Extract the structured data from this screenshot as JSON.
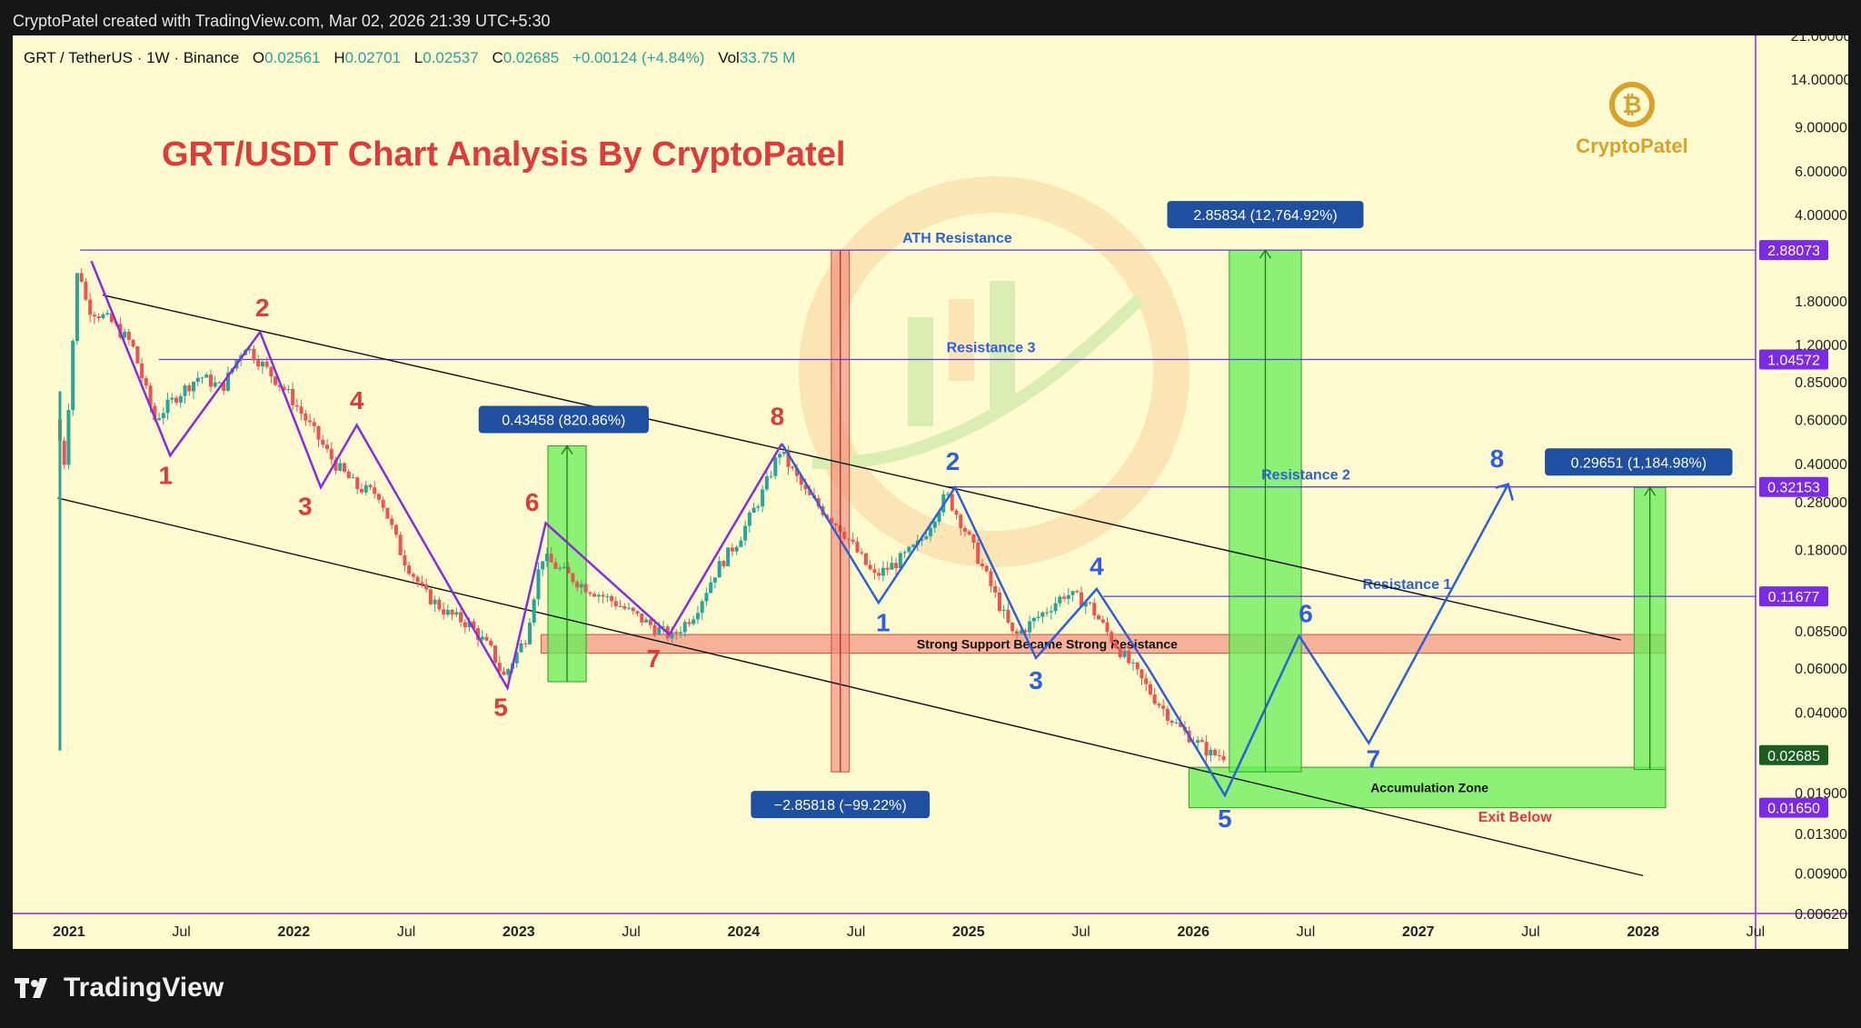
{
  "header": {
    "attribution": "CryptoPatel created with TradingView.com, Mar 02, 2026 21:39 UTC+5:30"
  },
  "symbol_bar": {
    "symbol": "GRT / TetherUS · 1W · Binance",
    "open_label": "O",
    "open": "0.02561",
    "high_label": "H",
    "high": "0.02701",
    "low_label": "L",
    "low": "0.02537",
    "close_label": "C",
    "close": "0.02685",
    "change": "+0.00124 (+4.84%)",
    "vol_label": "Vol",
    "vol": "33.75 M"
  },
  "footer": {
    "brand": "TradingView"
  },
  "logo": {
    "text": "CryptoPatel",
    "color": "#d9a32b"
  },
  "colors": {
    "background": "#fffbd0",
    "bull": "#26a69a",
    "bear": "#ef5350",
    "red_text": "#e03a3a",
    "blue_text": "#2f5fe0",
    "purple_line": "#8a2be2",
    "label_box": "#1f4fa0",
    "green_zone": "#66ee55",
    "red_zone": "#f08a7a"
  },
  "chart_data": {
    "type": "candlestick",
    "title": "GRT/USDT Chart Analysis By CryptoPatel",
    "y_scale": "log",
    "ylim": [
      0.0062,
      21.0
    ],
    "xlim": [
      2020.75,
      2028.5
    ],
    "x_ticks": [
      {
        "x": 2021.0,
        "label": "2021",
        "bold": true
      },
      {
        "x": 2021.5,
        "label": "Jul"
      },
      {
        "x": 2022.0,
        "label": "2022",
        "bold": true
      },
      {
        "x": 2022.5,
        "label": "Jul"
      },
      {
        "x": 2023.0,
        "label": "2023",
        "bold": true
      },
      {
        "x": 2023.5,
        "label": "Jul"
      },
      {
        "x": 2024.0,
        "label": "2024",
        "bold": true
      },
      {
        "x": 2024.5,
        "label": "Jul"
      },
      {
        "x": 2025.0,
        "label": "2025",
        "bold": true
      },
      {
        "x": 2025.5,
        "label": "Jul"
      },
      {
        "x": 2026.0,
        "label": "2026",
        "bold": true
      },
      {
        "x": 2026.5,
        "label": "Jul"
      },
      {
        "x": 2027.0,
        "label": "2027",
        "bold": true
      },
      {
        "x": 2027.5,
        "label": "Jul"
      },
      {
        "x": 2028.0,
        "label": "2028",
        "bold": true
      },
      {
        "x": 2028.5,
        "label": "Jul"
      }
    ],
    "y_ticks": [
      {
        "v": 21.0,
        "label": "21.00000"
      },
      {
        "v": 14.0,
        "label": "14.00000"
      },
      {
        "v": 9.0,
        "label": "9.00000"
      },
      {
        "v": 6.0,
        "label": "6.00000"
      },
      {
        "v": 4.0,
        "label": "4.00000"
      },
      {
        "v": 1.8,
        "label": "1.80000"
      },
      {
        "v": 1.2,
        "label": "1.20000"
      },
      {
        "v": 0.85,
        "label": "0.85000"
      },
      {
        "v": 0.6,
        "label": "0.60000"
      },
      {
        "v": 0.4,
        "label": "0.40000"
      },
      {
        "v": 0.28,
        "label": "0.28000"
      },
      {
        "v": 0.18,
        "label": "0.18000"
      },
      {
        "v": 0.085,
        "label": "0.08500"
      },
      {
        "v": 0.06,
        "label": "0.06000"
      },
      {
        "v": 0.04,
        "label": "0.04000"
      },
      {
        "v": 0.019,
        "label": "0.01900"
      },
      {
        "v": 0.013,
        "label": "0.01300"
      },
      {
        "v": 0.009,
        "label": "0.00900"
      },
      {
        "v": 0.0062,
        "label": "0.00620"
      }
    ],
    "price_badges": [
      {
        "v": 2.88073,
        "label": "2.88073",
        "color": "#7b2be8"
      },
      {
        "v": 1.04572,
        "label": "1.04572",
        "color": "#7b2be8"
      },
      {
        "v": 0.32153,
        "label": "0.32153",
        "color": "#7b2be8"
      },
      {
        "v": 0.11677,
        "label": "0.11677",
        "color": "#7b2be8"
      },
      {
        "v": 0.02685,
        "label": "0.02685",
        "color": "#1b5e20"
      },
      {
        "v": 0.0165,
        "label": "0.01650",
        "color": "#7b2be8"
      }
    ],
    "price_path": [
      [
        2020.96,
        0.6
      ],
      [
        2021.0,
        0.4
      ],
      [
        2021.06,
        2.6
      ],
      [
        2021.1,
        1.7
      ],
      [
        2021.2,
        1.5
      ],
      [
        2021.3,
        1.2
      ],
      [
        2021.4,
        0.6
      ],
      [
        2021.5,
        0.75
      ],
      [
        2021.6,
        0.9
      ],
      [
        2021.7,
        0.8
      ],
      [
        2021.8,
        1.2
      ],
      [
        2021.9,
        0.95
      ],
      [
        2022.0,
        0.75
      ],
      [
        2022.1,
        0.55
      ],
      [
        2022.2,
        0.4
      ],
      [
        2022.3,
        0.32
      ],
      [
        2022.4,
        0.3
      ],
      [
        2022.5,
        0.17
      ],
      [
        2022.6,
        0.12
      ],
      [
        2022.7,
        0.1
      ],
      [
        2022.8,
        0.09
      ],
      [
        2022.9,
        0.07
      ],
      [
        2022.95,
        0.055
      ],
      [
        2023.05,
        0.08
      ],
      [
        2023.12,
        0.17
      ],
      [
        2023.2,
        0.15
      ],
      [
        2023.3,
        0.13
      ],
      [
        2023.45,
        0.11
      ],
      [
        2023.6,
        0.09
      ],
      [
        2023.7,
        0.08
      ],
      [
        2023.8,
        0.1
      ],
      [
        2023.9,
        0.15
      ],
      [
        2024.0,
        0.2
      ],
      [
        2024.1,
        0.3
      ],
      [
        2024.18,
        0.45
      ],
      [
        2024.3,
        0.3
      ],
      [
        2024.45,
        0.22
      ],
      [
        2024.6,
        0.14
      ],
      [
        2024.7,
        0.16
      ],
      [
        2024.8,
        0.19
      ],
      [
        2024.92,
        0.3
      ],
      [
        2025.0,
        0.22
      ],
      [
        2025.1,
        0.14
      ],
      [
        2025.22,
        0.08
      ],
      [
        2025.35,
        0.1
      ],
      [
        2025.45,
        0.12
      ],
      [
        2025.55,
        0.11
      ],
      [
        2025.65,
        0.08
      ],
      [
        2025.75,
        0.06
      ],
      [
        2025.85,
        0.045
      ],
      [
        2025.95,
        0.035
      ],
      [
        2026.1,
        0.027
      ],
      [
        2026.15,
        0.0268
      ]
    ],
    "channel_lines": [
      {
        "from": [
          2021.15,
          1.9
        ],
        "to": [
          2027.9,
          0.078
        ]
      },
      {
        "from": [
          2020.95,
          0.29
        ],
        "to": [
          2028.0,
          0.0088
        ]
      }
    ],
    "horizontal_levels": [
      {
        "v": 2.88073,
        "from": 2021.05,
        "label": "ATH Resistance",
        "label_x": 2024.95
      },
      {
        "v": 1.04572,
        "from": 2021.4,
        "label": "Resistance 3",
        "label_x": 2025.1
      },
      {
        "v": 0.32153,
        "from": 2024.9,
        "label": "Resistance 2",
        "label_x": 2026.5
      },
      {
        "v": 0.11677,
        "from": 2025.6,
        "label": "Resistance 1",
        "label_x": 2026.95
      }
    ],
    "zones": [
      {
        "kind": "red",
        "x1": 2023.1,
        "x2": 2028.1,
        "v1": 0.069,
        "v2": 0.082,
        "label": "Strong Support Became Strong Resistance",
        "label_x": 2025.35
      },
      {
        "kind": "green",
        "x1": 2025.98,
        "x2": 2028.1,
        "v1": 0.0165,
        "v2": 0.024,
        "label": "Accumulation Zone",
        "label_x": 2027.05
      },
      {
        "kind": "green",
        "x1": 2023.13,
        "x2": 2023.3,
        "v1": 0.053,
        "v2": 0.47,
        "label": ""
      },
      {
        "kind": "green",
        "x1": 2026.16,
        "x2": 2026.48,
        "v1": 0.023,
        "v2": 2.88,
        "label": ""
      },
      {
        "kind": "green",
        "x1": 2027.96,
        "x2": 2028.1,
        "v1": 0.0235,
        "v2": 0.32,
        "label": ""
      },
      {
        "kind": "red",
        "x1": 2024.39,
        "x2": 2024.47,
        "v1": 0.023,
        "v2": 2.88,
        "label": ""
      }
    ],
    "measure_labels": [
      {
        "text": "0.43458 (820.86%)",
        "x": 2023.2,
        "v": 0.6
      },
      {
        "text": "−2.85818 (−99.22%)",
        "x": 2024.43,
        "v": 0.017
      },
      {
        "text": "2.85834 (12,764.92%)",
        "x": 2026.32,
        "v": 4.0
      },
      {
        "text": "0.29651 (1,184.98%)",
        "x": 2027.98,
        "v": 0.405
      }
    ],
    "red_wave": {
      "path": [
        [
          2021.1,
          2.6
        ],
        [
          2021.45,
          0.43
        ],
        [
          2021.85,
          1.35
        ],
        [
          2022.12,
          0.32
        ],
        [
          2022.28,
          0.57
        ],
        [
          2022.95,
          0.05
        ],
        [
          2023.12,
          0.23
        ],
        [
          2023.67,
          0.082
        ],
        [
          2024.17,
          0.48
        ]
      ],
      "labels": [
        {
          "text": "1",
          "x": 2021.43,
          "v": 0.36
        },
        {
          "text": "2",
          "x": 2021.86,
          "v": 1.7
        },
        {
          "text": "3",
          "x": 2022.05,
          "v": 0.27
        },
        {
          "text": "4",
          "x": 2022.28,
          "v": 0.72
        },
        {
          "text": "5",
          "x": 2022.92,
          "v": 0.042
        },
        {
          "text": "6",
          "x": 2023.06,
          "v": 0.28
        },
        {
          "text": "7",
          "x": 2023.6,
          "v": 0.066
        },
        {
          "text": "8",
          "x": 2024.15,
          "v": 0.62
        }
      ]
    },
    "blue_wave": {
      "path": [
        [
          2024.17,
          0.48
        ],
        [
          2024.6,
          0.11
        ],
        [
          2024.94,
          0.32
        ],
        [
          2025.3,
          0.066
        ],
        [
          2025.57,
          0.125
        ],
        [
          2025.8,
          0.06
        ],
        [
          2026.14,
          0.0185
        ],
        [
          2026.47,
          0.081
        ],
        [
          2026.78,
          0.03
        ],
        [
          2027.4,
          0.33
        ]
      ],
      "labels": [
        {
          "text": "1",
          "x": 2024.62,
          "v": 0.092
        },
        {
          "text": "2",
          "x": 2024.93,
          "v": 0.41
        },
        {
          "text": "3",
          "x": 2025.3,
          "v": 0.054
        },
        {
          "text": "4",
          "x": 2025.57,
          "v": 0.155
        },
        {
          "text": "5",
          "x": 2026.14,
          "v": 0.015
        },
        {
          "text": "6",
          "x": 2026.5,
          "v": 0.1
        },
        {
          "text": "7",
          "x": 2026.8,
          "v": 0.026
        },
        {
          "text": "8",
          "x": 2027.35,
          "v": 0.42
        }
      ]
    },
    "annotations": [
      {
        "text": "Exit Below",
        "x": 2027.43,
        "v": 0.0145,
        "color": "#e03a3a"
      }
    ]
  }
}
